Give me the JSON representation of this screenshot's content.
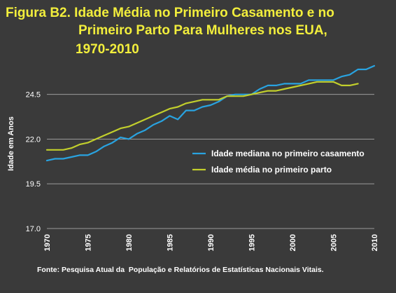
{
  "title": {
    "line1": "Figura B2. Idade Média no Primeiro Casamento e no",
    "line2": "Primeiro Parto Para Mulheres nos EUA,",
    "line3": "1970-2010"
  },
  "source": "Fonte: Pesquisa Atual da  População e Relatórios de Estatísticas Nacionais Vitais.",
  "chart_data": {
    "type": "line",
    "ylabel": "Idade em Anos",
    "xlabel": "",
    "ylim": [
      17.0,
      26.8
    ],
    "xlim": [
      1970,
      2010
    ],
    "y_ticks": [
      "17.0",
      "19.5",
      "22.0",
      "24.5"
    ],
    "y_tick_values": [
      17.0,
      19.5,
      22.0,
      24.5
    ],
    "x_ticks": [
      "1970",
      "1975",
      "1980",
      "1985",
      "1990",
      "1995",
      "2000",
      "2005",
      "2010"
    ],
    "x_tick_values": [
      1970,
      1975,
      1980,
      1985,
      1990,
      1995,
      2000,
      2005,
      2010
    ],
    "grid": "horizontal",
    "legend_position": "center-right",
    "colors": {
      "background": "#3a3a3a",
      "grid": "#9a9a9a",
      "text": "#ffffff",
      "title": "#f2ee3c"
    },
    "series": [
      {
        "name": "Idade mediana no primeiro casamento",
        "color": "#29a3e0",
        "x": [
          1970,
          1971,
          1972,
          1973,
          1974,
          1975,
          1976,
          1977,
          1978,
          1979,
          1980,
          1981,
          1982,
          1983,
          1984,
          1985,
          1986,
          1987,
          1988,
          1989,
          1990,
          1991,
          1992,
          1993,
          1994,
          1995,
          1996,
          1997,
          1998,
          1999,
          2000,
          2001,
          2002,
          2003,
          2004,
          2005,
          2006,
          2007,
          2008,
          2009,
          2010
        ],
        "y": [
          20.8,
          20.9,
          20.9,
          21.0,
          21.1,
          21.1,
          21.3,
          21.6,
          21.8,
          22.1,
          22.0,
          22.3,
          22.5,
          22.8,
          23.0,
          23.3,
          23.1,
          23.6,
          23.6,
          23.8,
          23.9,
          24.1,
          24.4,
          24.5,
          24.5,
          24.5,
          24.8,
          25.0,
          25.0,
          25.1,
          25.1,
          25.1,
          25.3,
          25.3,
          25.3,
          25.3,
          25.5,
          25.6,
          25.9,
          25.9,
          26.1
        ]
      },
      {
        "name": "Idade média no primeiro parto",
        "color": "#c2cf2c",
        "x": [
          1970,
          1971,
          1972,
          1973,
          1974,
          1975,
          1976,
          1977,
          1978,
          1979,
          1980,
          1981,
          1982,
          1983,
          1984,
          1985,
          1986,
          1987,
          1988,
          1989,
          1990,
          1991,
          1992,
          1993,
          1994,
          1995,
          1996,
          1997,
          1998,
          1999,
          2000,
          2001,
          2002,
          2003,
          2004,
          2005,
          2006,
          2007,
          2008
        ],
        "y": [
          21.4,
          21.4,
          21.4,
          21.5,
          21.7,
          21.8,
          22.0,
          22.2,
          22.4,
          22.6,
          22.7,
          22.9,
          23.1,
          23.3,
          23.5,
          23.7,
          23.8,
          24.0,
          24.1,
          24.2,
          24.2,
          24.2,
          24.4,
          24.4,
          24.4,
          24.5,
          24.6,
          24.7,
          24.7,
          24.8,
          24.9,
          25.0,
          25.1,
          25.2,
          25.2,
          25.2,
          25.0,
          25.0,
          25.1
        ]
      }
    ]
  }
}
